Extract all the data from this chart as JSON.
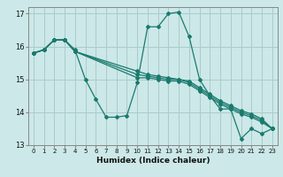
{
  "title": "",
  "xlabel": "Humidex (Indice chaleur)",
  "ylabel": "",
  "background_color": "#cce8e8",
  "grid_color": "#aacccc",
  "line_color": "#1a7a6e",
  "xlim": [
    -0.5,
    23.5
  ],
  "ylim": [
    13,
    17.2
  ],
  "yticks": [
    13,
    14,
    15,
    16,
    17
  ],
  "xticks": [
    0,
    1,
    2,
    3,
    4,
    5,
    6,
    7,
    8,
    9,
    10,
    11,
    12,
    13,
    14,
    15,
    16,
    17,
    18,
    19,
    20,
    21,
    22,
    23
  ],
  "lines": [
    {
      "x": [
        0,
        1,
        2,
        3,
        4,
        5,
        6,
        7,
        8,
        9,
        10,
        11,
        12,
        13,
        14,
        15,
        16,
        17,
        18,
        19,
        20,
        21,
        22,
        23
      ],
      "y": [
        15.8,
        15.9,
        16.2,
        16.2,
        15.9,
        15.0,
        14.4,
        13.85,
        13.85,
        13.9,
        14.9,
        16.6,
        16.6,
        17.0,
        17.05,
        16.3,
        15.0,
        14.5,
        14.1,
        14.1,
        13.2,
        13.5,
        13.35,
        13.5
      ]
    },
    {
      "x": [
        0,
        1,
        2,
        3,
        4,
        10,
        11,
        12,
        13,
        14,
        15,
        16,
        17,
        18,
        19,
        20,
        21,
        22,
        23
      ],
      "y": [
        15.8,
        15.9,
        16.2,
        16.2,
        15.85,
        15.05,
        15.05,
        15.0,
        14.95,
        14.95,
        14.85,
        14.65,
        14.45,
        14.25,
        14.1,
        13.95,
        13.85,
        13.7,
        13.5
      ]
    },
    {
      "x": [
        0,
        1,
        2,
        3,
        4,
        10,
        11,
        12,
        13,
        14,
        15,
        16,
        17,
        18,
        19,
        20,
        21,
        22,
        23
      ],
      "y": [
        15.8,
        15.9,
        16.2,
        16.2,
        15.85,
        15.15,
        15.1,
        15.05,
        15.0,
        15.0,
        14.9,
        14.7,
        14.5,
        14.3,
        14.15,
        14.0,
        13.9,
        13.75,
        13.5
      ]
    },
    {
      "x": [
        0,
        1,
        2,
        3,
        4,
        10,
        11,
        12,
        13,
        14,
        15,
        16,
        17,
        18,
        19,
        20,
        21,
        22,
        23
      ],
      "y": [
        15.8,
        15.9,
        16.2,
        16.2,
        15.85,
        15.25,
        15.15,
        15.1,
        15.05,
        15.0,
        14.95,
        14.75,
        14.55,
        14.35,
        14.2,
        14.05,
        13.95,
        13.8,
        13.5
      ]
    }
  ]
}
